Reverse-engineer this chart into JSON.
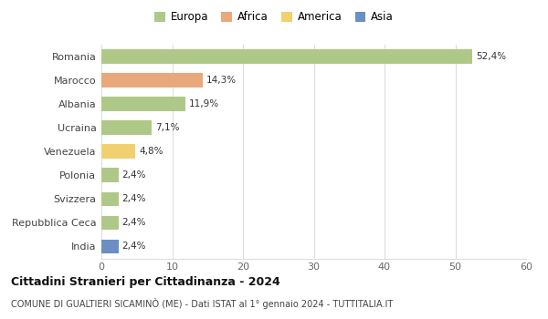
{
  "categories": [
    "Romania",
    "Marocco",
    "Albania",
    "Ucraina",
    "Venezuela",
    "Polonia",
    "Svizzera",
    "Repubblica Ceca",
    "India"
  ],
  "values": [
    52.4,
    14.3,
    11.9,
    7.1,
    4.8,
    2.4,
    2.4,
    2.4,
    2.4
  ],
  "labels": [
    "52,4%",
    "14,3%",
    "11,9%",
    "7,1%",
    "4,8%",
    "2,4%",
    "2,4%",
    "2,4%",
    "2,4%"
  ],
  "colors": [
    "#aec987",
    "#e8a87c",
    "#aec987",
    "#aec987",
    "#f0d070",
    "#aec987",
    "#aec987",
    "#aec987",
    "#6b8fc2"
  ],
  "legend": [
    {
      "label": "Europa",
      "color": "#aec987"
    },
    {
      "label": "Africa",
      "color": "#e8a87c"
    },
    {
      "label": "America",
      "color": "#f0d070"
    },
    {
      "label": "Asia",
      "color": "#6b8fc2"
    }
  ],
  "xlim": [
    0,
    60
  ],
  "xticks": [
    0,
    10,
    20,
    30,
    40,
    50,
    60
  ],
  "title": "Cittadini Stranieri per Cittadinanza - 2024",
  "subtitle": "COMUNE DI GUALTIERI SICAMINÒ (ME) - Dati ISTAT al 1° gennaio 2024 - TUTTITALIA.IT",
  "background_color": "#ffffff",
  "grid_color": "#dddddd",
  "bar_height": 0.6
}
